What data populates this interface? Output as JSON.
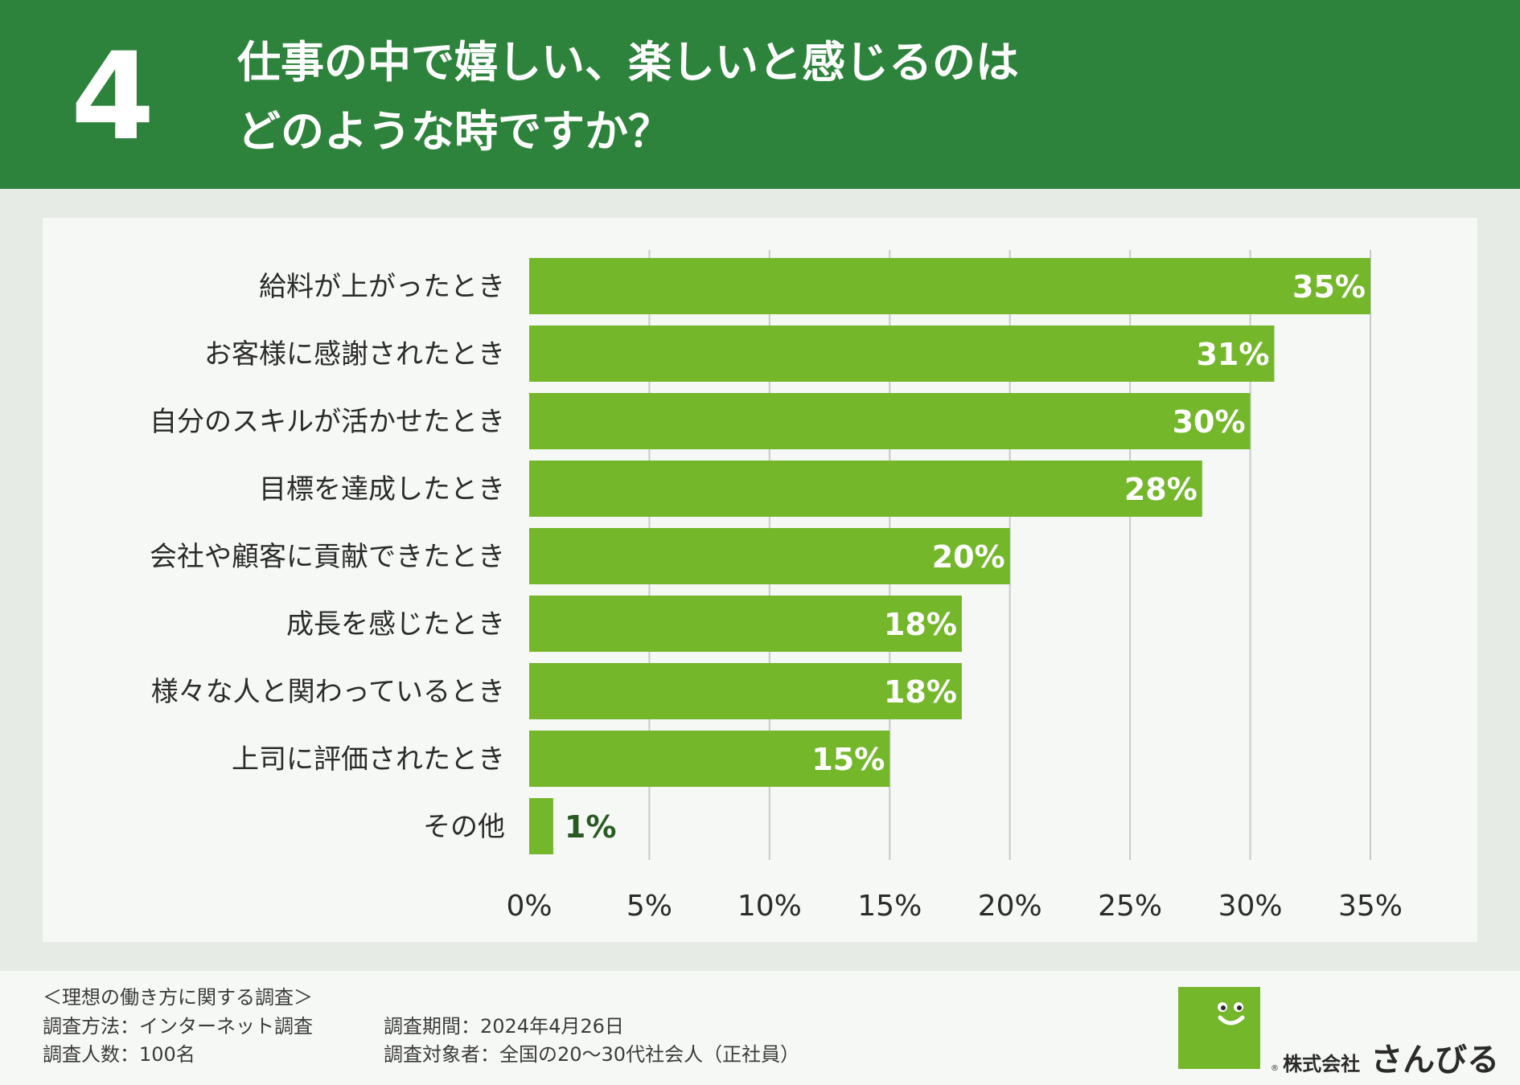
{
  "header": {
    "number": "4",
    "title_line1": "仕事の中で嬉しい、楽しいと感じるのは",
    "title_line2": "どのような時ですか？"
  },
  "colors": {
    "header_bg": "#2e833c",
    "bar": "#74b72b",
    "grid": "#c9c9c9",
    "outside_label": "#2a5a24"
  },
  "chart_data": {
    "type": "bar",
    "orientation": "horizontal",
    "categories": [
      "給料が上がったとき",
      "お客様に感謝されたとき",
      "自分のスキルが活かせたとき",
      "目標を達成したとき",
      "会社や顧客に貢献できたとき",
      "成長を感じたとき",
      "様々な人と関わっているとき",
      "上司に評価されたとき",
      "その他"
    ],
    "values": [
      35,
      31,
      30,
      28,
      20,
      18,
      18,
      15,
      1
    ],
    "data_labels": [
      "35%",
      "31%",
      "30%",
      "28%",
      "20%",
      "18%",
      "18%",
      "15%",
      "1%"
    ],
    "xlim": [
      0,
      35
    ],
    "xticks": [
      0,
      5,
      10,
      15,
      20,
      25,
      30,
      35
    ],
    "xtick_labels": [
      "0%",
      "5%",
      "10%",
      "15%",
      "20%",
      "25%",
      "30%",
      "35%"
    ],
    "grid": true,
    "title": "仕事の中で嬉しい、楽しいと感じるのは どのような時ですか？"
  },
  "footer": {
    "survey_name": "＜理想の働き方に関する調査＞",
    "method": "調査方法：インターネット調査",
    "count": "調査人数：100名",
    "period": "調査期間：2024年4月26日",
    "target": "調査対象者：全国の20〜30代社会人（正社員）",
    "logo_corp": "株式会社",
    "logo_brand": "さんびる",
    "reg_mark": "®"
  }
}
